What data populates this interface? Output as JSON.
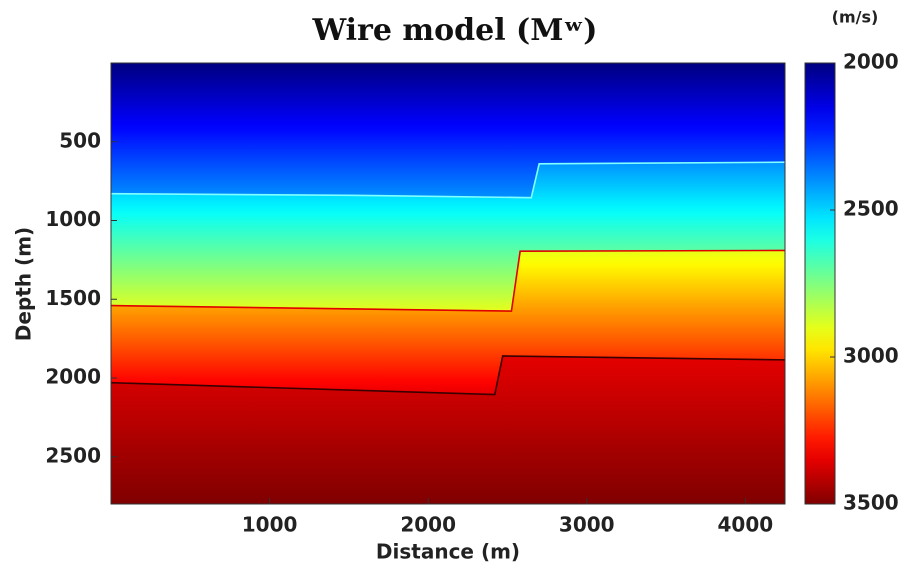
{
  "chart_data": {
    "type": "heatmap",
    "title": "Wire model (Mʷ)",
    "x_label": "Distance (m)",
    "y_label": "Depth (m)",
    "xlim": [
      0,
      4250
    ],
    "ylim": [
      0,
      2800
    ],
    "xticks": [
      1000,
      2000,
      3000,
      4000
    ],
    "yticks": [
      500,
      1000,
      1500,
      2000,
      2500
    ],
    "y_inverted": true,
    "colormap": "jet",
    "colorbar": {
      "label": "(m/s)",
      "lim": [
        2000,
        3500
      ],
      "ticks": [
        2000,
        2500,
        3000,
        3500
      ]
    },
    "velocities": [
      2000,
      2400,
      2900,
      3350,
      3500
    ],
    "interfaces": [
      {
        "color": "#80ffff",
        "x": [
          0,
          1500,
          2650,
          2700,
          4250
        ],
        "values": [
          830,
          840,
          855,
          640,
          630
        ]
      },
      {
        "color": "#e00000",
        "x": [
          0,
          2525,
          2580,
          4250
        ],
        "values": [
          1540,
          1575,
          1195,
          1190
        ]
      },
      {
        "color": "#3a0000",
        "x": [
          0,
          2420,
          2470,
          4250
        ],
        "values": [
          2030,
          2105,
          1860,
          1885
        ]
      }
    ]
  }
}
